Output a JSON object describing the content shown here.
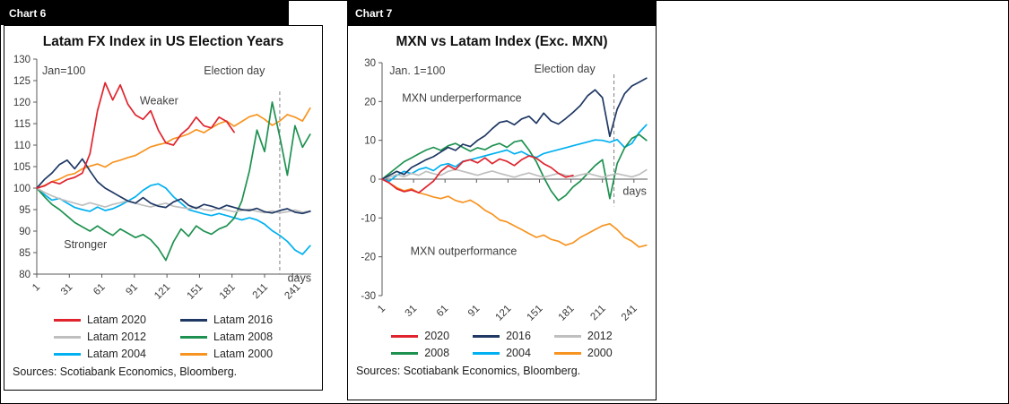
{
  "chart_data": [
    {
      "id": "chart6",
      "tag": "Chart 6",
      "type": "line",
      "title": "Latam FX Index in US Election Years",
      "xlabel": "days",
      "ylabel": "",
      "xlim": [
        1,
        254
      ],
      "ylim": [
        80,
        130
      ],
      "x_axis_at": 80,
      "grid": false,
      "legend_position": "bottom",
      "y_ticks": [
        130,
        125,
        120,
        115,
        110,
        105,
        100,
        95,
        90,
        85,
        80
      ],
      "x_ticks": [
        1,
        31,
        61,
        91,
        121,
        151,
        181,
        211,
        241
      ],
      "election_line": {
        "day": 225,
        "from": 122.5,
        "to": 80
      },
      "annotations": [
        {
          "text": "Jan=100",
          "day": 6,
          "value": 126.5,
          "anchor": "start"
        },
        {
          "text": "Election day",
          "day": 155,
          "value": 126.5,
          "anchor": "start"
        },
        {
          "text": "Weaker",
          "day": 96,
          "value": 119.5,
          "anchor": "start"
        },
        {
          "text": "Stronger",
          "day": 26,
          "value": 86,
          "anchor": "start"
        },
        {
          "text": "days",
          "day": 254,
          "value": 78.2,
          "anchor": "end"
        }
      ],
      "x": [
        1,
        8,
        15,
        22,
        29,
        36,
        43,
        50,
        57,
        64,
        71,
        78,
        85,
        92,
        99,
        106,
        113,
        120,
        127,
        134,
        141,
        148,
        155,
        162,
        169,
        176,
        183,
        190,
        197,
        204,
        211,
        218,
        225,
        232,
        239,
        246,
        253
      ],
      "series": [
        {
          "name": "Latam 2020",
          "color": "#e0242e",
          "values": [
            100,
            100.5,
            101.5,
            101,
            102,
            102.5,
            103.5,
            108,
            118,
            124.5,
            120.5,
            124,
            119.5,
            117,
            116,
            118,
            113.5,
            110.5,
            110,
            112.5,
            114,
            116.5,
            114.5,
            114,
            116.5,
            115.5,
            113,
            null,
            null,
            null,
            null,
            null,
            null,
            null,
            null,
            null,
            null
          ]
        },
        {
          "name": "Latam 2016",
          "color": "#1f3864",
          "values": [
            100,
            102,
            103.5,
            105.5,
            106.5,
            104.5,
            106.8,
            104,
            101.5,
            100,
            99,
            98,
            97,
            96.5,
            97.8,
            96.5,
            95.8,
            95.5,
            96.8,
            97.5,
            96,
            95.3,
            96.2,
            95.8,
            95.2,
            96,
            95.5,
            95,
            94.8,
            95.3,
            94.5,
            94.2,
            94.8,
            95.2,
            94.4,
            94.1,
            94.6
          ]
        },
        {
          "name": "Latam 2012",
          "color": "#bfbfbf",
          "values": [
            100,
            99,
            98.2,
            97.5,
            97,
            96.5,
            96,
            96.6,
            96.1,
            95.6,
            96.2,
            96.6,
            97.1,
            96.5,
            96,
            95.6,
            96.1,
            96.5,
            95.8,
            95.5,
            95.2,
            95.6,
            95,
            94.8,
            95.3,
            94.9,
            94.5,
            94.8,
            95.1,
            94.6,
            94.3,
            94.7,
            94.2,
            94.5,
            94.9,
            94.4,
            94.7
          ]
        },
        {
          "name": "Latam 2008",
          "color": "#1e9150",
          "values": [
            100,
            98,
            96.2,
            95,
            93.5,
            92,
            91,
            90,
            91.2,
            90,
            89,
            90.5,
            89.5,
            88.5,
            89.2,
            88,
            86,
            83.2,
            87.5,
            90.5,
            88.8,
            91.2,
            90,
            89.3,
            90.5,
            91.2,
            93,
            97,
            104,
            113.5,
            108.5,
            120,
            112,
            103,
            114.5,
            109.5,
            112.5
          ]
        },
        {
          "name": "Latam 2004",
          "color": "#00b0f0",
          "values": [
            100,
            98.5,
            97.2,
            97.6,
            96.5,
            95.5,
            95,
            94.6,
            95.6,
            94.8,
            95.2,
            96,
            97,
            98,
            99.5,
            100.6,
            101,
            100,
            98,
            96.5,
            95,
            94.5,
            94,
            93.6,
            94.1,
            93.6,
            93.1,
            92.6,
            93.1,
            92.6,
            91.6,
            90.1,
            89,
            87.6,
            85.6,
            84.6,
            86.6
          ]
        },
        {
          "name": "Latam 2000",
          "color": "#f79421",
          "values": [
            100,
            100.6,
            101.5,
            102.1,
            103,
            103.4,
            104.5,
            105.1,
            105.6,
            104.9,
            106,
            106.5,
            107.1,
            107.6,
            108.6,
            109.6,
            110.1,
            110.5,
            111.5,
            112,
            112.6,
            113.6,
            112.9,
            114,
            115,
            115.6,
            114.4,
            115.5,
            116.6,
            117.1,
            116,
            114.6,
            115.6,
            117.1,
            116.5,
            115.6,
            118.6
          ]
        }
      ],
      "source": "Sources: Scotiabank Economics, Bloomberg."
    },
    {
      "id": "chart7",
      "tag": "Chart 7",
      "type": "line",
      "title": "MXN vs Latam Index (Exc. MXN)",
      "xlabel": "days",
      "ylabel": "",
      "xlim": [
        1,
        254
      ],
      "ylim": [
        -30,
        30
      ],
      "x_axis_at": 0,
      "grid": false,
      "legend_position": "bottom",
      "y_ticks": [
        30,
        20,
        10,
        0,
        -10,
        -20,
        -30
      ],
      "x_ticks": [
        1,
        31,
        61,
        91,
        121,
        151,
        181,
        211,
        241
      ],
      "election_line": {
        "day": 222,
        "from": 27,
        "to": -7
      },
      "annotations": [
        {
          "text": "Jan. 1=100",
          "day": 8,
          "value": 27,
          "anchor": "start"
        },
        {
          "text": "Election day",
          "day": 146,
          "value": 27.5,
          "anchor": "start"
        },
        {
          "text": "MXN underperformance",
          "day": 20,
          "value": 20,
          "anchor": "start"
        },
        {
          "text": "MXN outperformance",
          "day": 28,
          "value": -19.5,
          "anchor": "start"
        },
        {
          "text": "days",
          "day": 253,
          "value": -4,
          "anchor": "end"
        }
      ],
      "x": [
        1,
        8,
        15,
        22,
        29,
        36,
        43,
        50,
        57,
        64,
        71,
        78,
        85,
        92,
        99,
        106,
        113,
        120,
        127,
        134,
        141,
        148,
        155,
        162,
        169,
        176,
        183,
        190,
        197,
        204,
        211,
        218,
        225,
        232,
        239,
        246,
        253
      ],
      "series": [
        {
          "name": "2020",
          "color": "#e0242e",
          "values": [
            0,
            -1,
            -2.5,
            -3.2,
            -2.8,
            -3.5,
            -2,
            -0.5,
            2,
            3.5,
            2.5,
            4.5,
            5,
            4.2,
            5.5,
            4,
            5.2,
            4.6,
            3.5,
            5,
            6,
            5.4,
            4,
            3,
            1.5,
            0.5,
            1,
            null,
            null,
            null,
            null,
            null,
            null,
            null,
            null,
            null,
            null
          ]
        },
        {
          "name": "2016",
          "color": "#1f3864",
          "values": [
            0,
            1,
            2,
            1.2,
            3,
            4,
            5,
            5.8,
            7,
            8.2,
            7.4,
            9,
            8.4,
            10,
            11.2,
            13,
            14.6,
            15,
            14,
            15.5,
            16.2,
            14.4,
            17,
            15,
            14.2,
            15.6,
            17.2,
            19,
            21.5,
            23,
            21,
            11,
            18,
            22,
            24,
            25,
            26
          ]
        },
        {
          "name": "2012",
          "color": "#bfbfbf",
          "values": [
            0,
            0.5,
            1.2,
            0.6,
            1.5,
            1,
            2,
            1.4,
            1,
            2,
            2.5,
            2,
            1.5,
            1,
            1.6,
            2.1,
            1.5,
            1,
            0.5,
            1.1,
            1.6,
            1,
            0.5,
            1,
            1.5,
            1,
            0.6,
            1.1,
            1.5,
            1,
            0.5,
            1,
            1.4,
            1,
            0.6,
            1.2,
            2.4
          ]
        },
        {
          "name": "2008",
          "color": "#1e9150",
          "values": [
            0,
            1.5,
            3,
            4.5,
            5.5,
            6.5,
            7.5,
            8.2,
            7.4,
            8.6,
            9.2,
            8.2,
            7.2,
            8.1,
            7.6,
            8.6,
            9.2,
            8.2,
            9.6,
            10,
            7.5,
            4.5,
            0.5,
            -3,
            -5.5,
            -4.2,
            -2,
            -0.5,
            1.5,
            3.5,
            5,
            -5,
            4,
            8,
            10.5,
            11.5,
            10
          ]
        },
        {
          "name": "2004",
          "color": "#00b0f0",
          "values": [
            0,
            -0.5,
            1,
            2,
            1.4,
            2.5,
            3,
            2.2,
            3.6,
            4,
            3.2,
            4.6,
            5,
            5.5,
            6,
            6.5,
            7,
            7.5,
            6.5,
            7.1,
            6.1,
            5.6,
            6.6,
            7.1,
            7.6,
            8.1,
            8.6,
            9.1,
            9.6,
            10.1,
            10,
            9.5,
            10.2,
            8.2,
            9.2,
            12,
            14
          ]
        },
        {
          "name": "2000",
          "color": "#f79421",
          "values": [
            0,
            -1,
            -2.2,
            -3,
            -2.5,
            -3.5,
            -4,
            -4.6,
            -5,
            -4.4,
            -5.5,
            -6,
            -5.4,
            -6.5,
            -8,
            -9,
            -10.5,
            -11,
            -12,
            -13,
            -14,
            -15,
            -14.4,
            -15.5,
            -16,
            -17,
            -16.4,
            -15,
            -14,
            -13,
            -12,
            -11.5,
            -13,
            -15,
            -16,
            -17.5,
            -17
          ]
        }
      ],
      "source": "Sources: Scotiabank Economics, Bloomberg."
    }
  ]
}
